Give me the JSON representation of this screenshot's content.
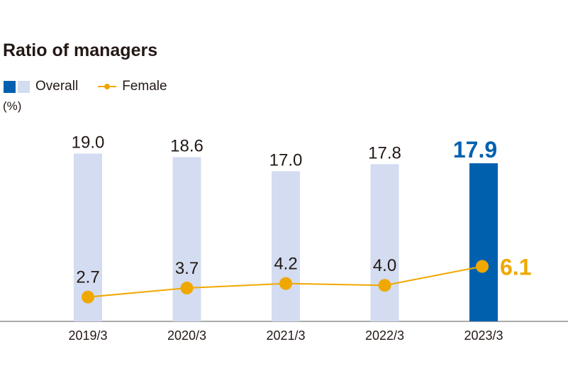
{
  "chart_data": {
    "type": "bar",
    "title": "Ratio of managers",
    "unit_label": "(%)",
    "categories": [
      "2019/3",
      "2020/3",
      "2021/3",
      "2022/3",
      "2023/3"
    ],
    "series": [
      {
        "name": "Overall",
        "kind": "bar",
        "values": [
          19.0,
          18.6,
          17.0,
          17.8,
          17.9
        ]
      },
      {
        "name": "Female",
        "kind": "line",
        "values": [
          2.7,
          3.7,
          4.2,
          4.0,
          6.1
        ]
      }
    ],
    "highlight_index": 4,
    "colors": {
      "bar": "#d3dcf0",
      "bar_highlight": "#0060ae",
      "line": "#f0a800",
      "axis": "#555555",
      "text": "#231815"
    },
    "grid": false,
    "legend_position": "top-left"
  }
}
